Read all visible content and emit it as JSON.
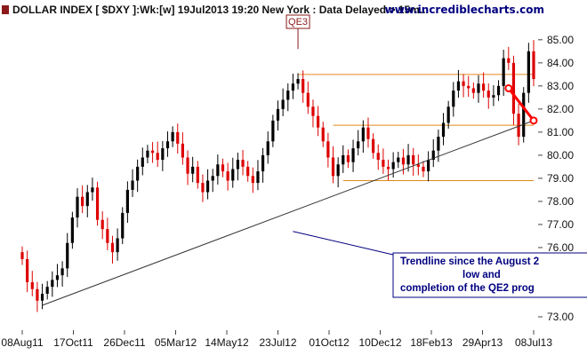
{
  "header": {
    "title": "DOLLAR INDEX [ $DXY ]:Wk:[w]  19Jul2013 19:20 New York : Data Delayed > 15m...",
    "site": "www.incrediblecharts.com"
  },
  "colors": {
    "up": "#000000",
    "down": "#dd0000",
    "resistance": "#e08a1e",
    "trendline": "#333333",
    "annotation": "#000080",
    "projection": "#ff0000"
  },
  "chart_data": {
    "type": "candlestick",
    "y_ticks": [
      "73.00",
      "74.00",
      "75.00",
      "76.00",
      "77.00",
      "78.00",
      "79.00",
      "80.00",
      "81.00",
      "82.00",
      "83.00",
      "84.00",
      "85.00"
    ],
    "x_ticks": [
      "08Aug11",
      "17Oct11",
      "26Dec11",
      "05Mar12",
      "14May12",
      "23Jul12",
      "01Oct12",
      "10Dec12",
      "18Feb13",
      "29Apr13",
      "08Jul13"
    ],
    "ylim": [
      72.5,
      85.8
    ],
    "num_weeks": 103,
    "horizontal_levels": [
      83.5,
      81.3,
      78.9
    ],
    "trendline": {
      "from": [
        4,
        73.5
      ],
      "to": [
        102,
        81.5
      ]
    },
    "projection": [
      [
        97,
        82.9
      ],
      [
        102,
        81.5
      ]
    ],
    "qe3_label": "QE3",
    "qe3_week": 55,
    "annotation_lines": [
      "Trendline since the August 2",
      "low and",
      "completion of the QE2 prog"
    ],
    "annotation_target": [
      54,
      76.7
    ],
    "closes": [
      75.5,
      74.5,
      74.2,
      73.7,
      74.0,
      74.3,
      74.6,
      74.8,
      75.1,
      76.2,
      77.3,
      78.2,
      77.8,
      78.4,
      78.6,
      77.2,
      76.8,
      76.2,
      75.8,
      76.4,
      77.5,
      78.5,
      78.9,
      79.5,
      79.9,
      80.2,
      80.1,
      79.8,
      80.3,
      80.6,
      81.0,
      80.5,
      79.9,
      79.2,
      79.5,
      78.8,
      78.4,
      78.9,
      79.1,
      79.6,
      79.3,
      78.9,
      79.4,
      79.8,
      79.5,
      79.1,
      78.8,
      79.3,
      80.0,
      80.6,
      81.5,
      82.0,
      82.4,
      82.8,
      83.1,
      83.3,
      82.7,
      82.1,
      81.7,
      81.2,
      80.6,
      79.9,
      79.1,
      79.6,
      80.0,
      79.7,
      80.3,
      80.6,
      81.2,
      80.7,
      80.1,
      79.8,
      79.5,
      79.4,
      79.7,
      79.9,
      79.6,
      80.0,
      79.6,
      79.5,
      79.3,
      79.8,
      80.2,
      80.8,
      81.4,
      82.1,
      82.8,
      83.2,
      83.0,
      82.9,
      82.7,
      83.1,
      82.8,
      82.5,
      82.6,
      83.0,
      84.2,
      84.0,
      81.8,
      80.8,
      82.7,
      84.5,
      83.3
    ]
  }
}
